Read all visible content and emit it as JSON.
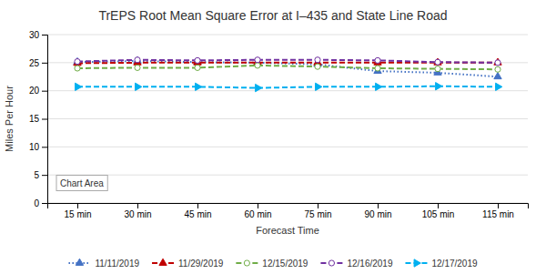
{
  "chart_data": {
    "type": "line",
    "title": "TrEPS Root Mean Square Error at I–435 and State Line Road",
    "x_label": "Forecast Time",
    "y_label": "Miles Per Hour",
    "categories": [
      "15 min",
      "30 min",
      "45 min",
      "60 min",
      "75 min",
      "90 min",
      "105 min",
      "115 min"
    ],
    "series": [
      {
        "name": "11/11/2019",
        "color": "#4472C4",
        "line_style": "dotted",
        "marker": "triangle",
        "values": [
          25.1,
          25.3,
          25.1,
          25.0,
          24.7,
          23.5,
          23.2,
          22.5
        ]
      },
      {
        "name": "11/29/2019",
        "color": "#C00000",
        "line_style": "dashed",
        "marker": "triangle",
        "values": [
          24.9,
          25.0,
          25.0,
          25.0,
          25.0,
          25.0,
          25.0,
          25.0
        ]
      },
      {
        "name": "12/15/2019",
        "color": "#70AD47",
        "line_style": "dashed",
        "marker": "circle",
        "values": [
          24.0,
          24.1,
          24.1,
          24.5,
          24.3,
          24.0,
          23.9,
          23.8
        ]
      },
      {
        "name": "12/16/2019",
        "color": "#7030A0",
        "line_style": "dashed",
        "marker": "circle",
        "values": [
          25.2,
          25.5,
          25.4,
          25.5,
          25.5,
          25.4,
          25.1,
          25.0
        ]
      },
      {
        "name": "12/17/2019",
        "color": "#00B0F0",
        "line_style": "dashed",
        "marker": "triangle-right",
        "values": [
          20.7,
          20.7,
          20.7,
          20.5,
          20.7,
          20.7,
          20.8,
          20.7
        ]
      }
    ],
    "annotations": [
      "Chart Area"
    ],
    "ylim": [
      0,
      30
    ],
    "yticks": [
      0,
      5,
      10,
      15,
      20,
      25,
      30
    ],
    "grid": true,
    "legend": "bottom"
  }
}
